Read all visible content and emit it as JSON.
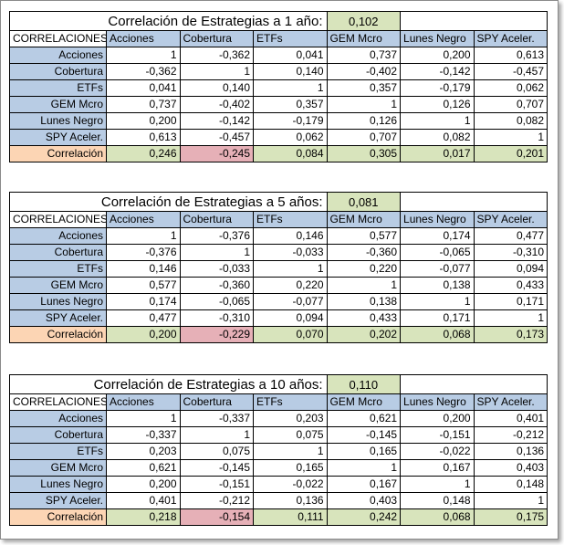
{
  "colors": {
    "header_blue": "#b8cce4",
    "good_green": "#d8e4bc",
    "bad_red": "#e6b0b7",
    "label_peach": "#fcd5b4"
  },
  "tables": [
    {
      "title": "Correlación de Estrategias a 1 año:",
      "average": "0,102",
      "corner": "CORRELACIONES",
      "columns": [
        "Acciones",
        "Cobertura",
        "ETFs",
        "GEM Mcro",
        "Lunes Negro",
        "SPY Aceler."
      ],
      "rows": [
        {
          "label": "Acciones",
          "values": [
            "1",
            "-0,362",
            "0,041",
            "0,737",
            "0,200",
            "0,613"
          ]
        },
        {
          "label": "Cobertura",
          "values": [
            "-0,362",
            "1",
            "0,140",
            "-0,402",
            "-0,142",
            "-0,457"
          ]
        },
        {
          "label": "ETFs",
          "values": [
            "0,041",
            "0,140",
            "1",
            "0,357",
            "-0,179",
            "0,062"
          ]
        },
        {
          "label": "GEM Mcro",
          "values": [
            "0,737",
            "-0,402",
            "0,357",
            "1",
            "0,126",
            "0,707"
          ]
        },
        {
          "label": "Lunes Negro",
          "values": [
            "0,200",
            "-0,142",
            "-0,179",
            "0,126",
            "1",
            "0,082"
          ]
        },
        {
          "label": "SPY Aceler.",
          "values": [
            "0,613",
            "-0,457",
            "0,062",
            "0,707",
            "0,082",
            "1"
          ]
        }
      ],
      "summary_label": "Correlación",
      "summary": [
        "0,246",
        "-0,245",
        "0,084",
        "0,305",
        "0,017",
        "0,201"
      ]
    },
    {
      "title": "Correlación de Estrategias a 5 años:",
      "average": "0,081",
      "corner": "CORRELACIONES",
      "columns": [
        "Acciones",
        "Cobertura",
        "ETFs",
        "GEM Mcro",
        "Lunes Negro",
        "SPY Aceler."
      ],
      "rows": [
        {
          "label": "Acciones",
          "values": [
            "1",
            "-0,376",
            "0,146",
            "0,577",
            "0,174",
            "0,477"
          ]
        },
        {
          "label": "Cobertura",
          "values": [
            "-0,376",
            "1",
            "-0,033",
            "-0,360",
            "-0,065",
            "-0,310"
          ]
        },
        {
          "label": "ETFs",
          "values": [
            "0,146",
            "-0,033",
            "1",
            "0,220",
            "-0,077",
            "0,094"
          ]
        },
        {
          "label": "GEM Mcro",
          "values": [
            "0,577",
            "-0,360",
            "0,220",
            "1",
            "0,138",
            "0,433"
          ]
        },
        {
          "label": "Lunes Negro",
          "values": [
            "0,174",
            "-0,065",
            "-0,077",
            "0,138",
            "1",
            "0,171"
          ]
        },
        {
          "label": "SPY Aceler.",
          "values": [
            "0,477",
            "-0,310",
            "0,094",
            "0,433",
            "0,171",
            "1"
          ]
        }
      ],
      "summary_label": "Correlación",
      "summary": [
        "0,200",
        "-0,229",
        "0,070",
        "0,202",
        "0,068",
        "0,173"
      ]
    },
    {
      "title": "Correlación de Estrategias a 10 años:",
      "average": "0,110",
      "corner": "CORRELACIONES",
      "columns": [
        "Acciones",
        "Cobertura",
        "ETFs",
        "GEM Mcro",
        "Lunes Negro",
        "SPY Aceler."
      ],
      "rows": [
        {
          "label": "Acciones",
          "values": [
            "1",
            "-0,337",
            "0,203",
            "0,621",
            "0,200",
            "0,401"
          ]
        },
        {
          "label": "Cobertura",
          "values": [
            "-0,337",
            "1",
            "0,075",
            "-0,145",
            "-0,151",
            "-0,212"
          ]
        },
        {
          "label": "ETFs",
          "values": [
            "0,203",
            "0,075",
            "1",
            "0,165",
            "-0,022",
            "0,136"
          ]
        },
        {
          "label": "GEM Mcro",
          "values": [
            "0,621",
            "-0,145",
            "0,165",
            "1",
            "0,167",
            "0,403"
          ]
        },
        {
          "label": "Lunes Negro",
          "values": [
            "0,200",
            "-0,151",
            "-0,022",
            "0,167",
            "1",
            "0,148"
          ]
        },
        {
          "label": "SPY Aceler.",
          "values": [
            "0,401",
            "-0,212",
            "0,136",
            "0,403",
            "0,148",
            "1"
          ]
        }
      ],
      "summary_label": "Correlación",
      "summary": [
        "0,218",
        "-0,154",
        "0,111",
        "0,242",
        "0,068",
        "0,175"
      ]
    }
  ]
}
